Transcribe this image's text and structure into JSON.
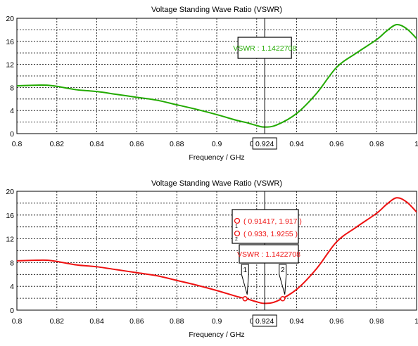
{
  "chart_data": [
    {
      "type": "line",
      "title": "Voltage Standing Wave Ratio (VSWR)",
      "xlabel": "Frequency / GHz",
      "ylabel": "",
      "xlim": [
        0.8,
        1.0
      ],
      "ylim": [
        0,
        20
      ],
      "x_ticks": [
        "0.8",
        "0.82",
        "0.84",
        "0.86",
        "0.88",
        "0.9",
        "0.92",
        "0.94",
        "0.96",
        "0.98",
        "1"
      ],
      "y_ticks": [
        "0",
        "4",
        "8",
        "12",
        "16",
        "20"
      ],
      "grid": true,
      "series": [
        {
          "color": "#22aa00",
          "x": [
            0.8,
            0.81,
            0.815,
            0.82,
            0.83,
            0.84,
            0.85,
            0.86,
            0.87,
            0.88,
            0.89,
            0.9,
            0.91,
            0.915,
            0.92,
            0.924,
            0.93,
            0.94,
            0.95,
            0.96,
            0.97,
            0.98,
            0.985,
            0.99,
            0.995,
            1.0
          ],
          "y": [
            8.3,
            8.4,
            8.4,
            8.2,
            7.6,
            7.3,
            6.8,
            6.3,
            5.8,
            5.0,
            4.2,
            3.3,
            2.3,
            1.9,
            1.4,
            1.14,
            1.5,
            3.5,
            7.0,
            11.5,
            14.0,
            16.3,
            17.8,
            18.9,
            18.2,
            16.5
          ]
        }
      ],
      "cursor": {
        "x": 0.924,
        "x_label": "0.924",
        "annotation": "VSWR : 1.1422708"
      }
    },
    {
      "type": "line",
      "title": "Voltage Standing Wave Ratio (VSWR)",
      "xlabel": "Frequency / GHz",
      "ylabel": "",
      "xlim": [
        0.8,
        1.0
      ],
      "ylim": [
        0,
        20
      ],
      "x_ticks": [
        "0.8",
        "0.82",
        "0.84",
        "0.86",
        "0.88",
        "0.9",
        "0.92",
        "0.94",
        "0.96",
        "0.98",
        "1"
      ],
      "y_ticks": [
        "0",
        "4",
        "8",
        "12",
        "16",
        "20"
      ],
      "grid": true,
      "series": [
        {
          "color": "#ee1111",
          "x": [
            0.8,
            0.81,
            0.815,
            0.82,
            0.83,
            0.84,
            0.85,
            0.86,
            0.87,
            0.88,
            0.89,
            0.9,
            0.91,
            0.915,
            0.92,
            0.924,
            0.93,
            0.94,
            0.95,
            0.96,
            0.97,
            0.98,
            0.985,
            0.99,
            0.995,
            1.0
          ],
          "y": [
            8.3,
            8.4,
            8.4,
            8.2,
            7.6,
            7.3,
            6.8,
            6.3,
            5.8,
            5.0,
            4.2,
            3.3,
            2.3,
            1.9,
            1.4,
            1.14,
            1.5,
            3.5,
            7.0,
            11.5,
            14.0,
            16.3,
            17.8,
            18.9,
            18.2,
            16.5
          ]
        }
      ],
      "cursor": {
        "x": 0.924,
        "x_label": "0.924",
        "annotation": "VSWR : 1.1422708"
      },
      "markers": [
        {
          "id": "1",
          "x": 0.91417,
          "y": 1.917,
          "label": "( 0.91417, 1.917 )"
        },
        {
          "id": "2",
          "x": 0.933,
          "y": 1.9255,
          "label": "( 0.933, 1.9255 )"
        }
      ]
    }
  ]
}
